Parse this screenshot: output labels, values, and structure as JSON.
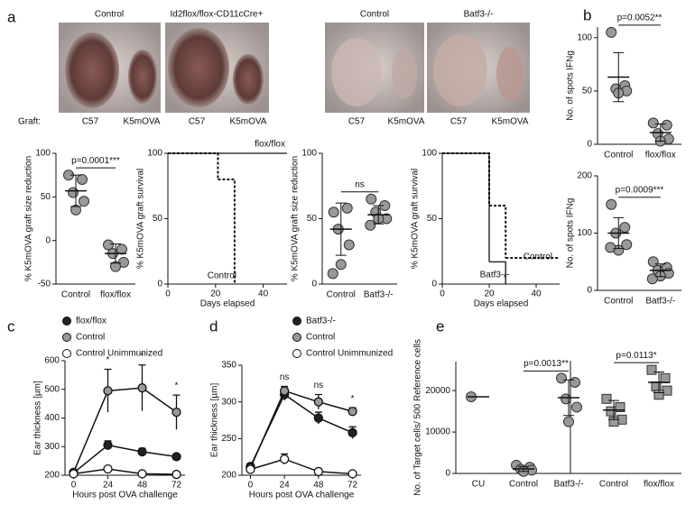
{
  "panel_labels": [
    "a",
    "b",
    "c",
    "d",
    "e"
  ],
  "photos": {
    "titles": [
      "Control",
      "Id2flox/flox-CD11cCre+",
      "Control",
      "Batf3-/-"
    ],
    "graft_label": "Graft:",
    "graft_types": [
      "C57",
      "K5mOVA"
    ]
  },
  "chart_data": [
    {
      "type": "dot",
      "ylabel": "% K5mOVA graft size reduction",
      "categories": [
        "Control",
        "flox/flox"
      ],
      "groups": [
        {
          "values": [
            75,
            70,
            55,
            45,
            35
          ],
          "mean": 57,
          "error": 18,
          "marker": "circle"
        },
        {
          "values": [
            -5,
            -10,
            -15,
            -25,
            -30
          ],
          "mean": -15,
          "error": 11,
          "marker": "circle"
        }
      ],
      "ylim": [
        -50,
        100
      ],
      "yticks": [
        -50,
        0,
        50,
        100
      ],
      "annotations": [
        "p=0.0001***"
      ],
      "color": "#999999"
    },
    {
      "type": "survival",
      "ylabel": "% K5mOVA graft survival",
      "xlabel": "Days elapsed",
      "series": [
        {
          "name": "flox/flox",
          "color": "#111111",
          "dash": false,
          "x": [
            0,
            50
          ],
          "values": [
            100,
            100
          ]
        },
        {
          "name": "Control",
          "color": "#111111",
          "dash": true,
          "x": [
            0,
            21,
            28
          ],
          "values": [
            100,
            80,
            0
          ]
        }
      ],
      "xlim": [
        0,
        50
      ],
      "xticks": [
        0,
        20,
        40
      ],
      "ylim": [
        0,
        100
      ],
      "yticks": [
        0,
        50,
        100
      ]
    },
    {
      "type": "dot",
      "ylabel": "% K5mOVA graft size reduction",
      "categories": [
        "Control",
        "Batf3-/-"
      ],
      "groups": [
        {
          "values": [
            55,
            58,
            42,
            30,
            15,
            8
          ],
          "mean": 42,
          "error": 20,
          "marker": "circle"
        },
        {
          "values": [
            65,
            60,
            55,
            50,
            50,
            45
          ],
          "mean": 53,
          "error": 7,
          "marker": "circle"
        }
      ],
      "ylim": [
        0,
        100
      ],
      "yticks": [
        0,
        50,
        100
      ],
      "annotations": [
        "ns"
      ],
      "color": "#999999"
    },
    {
      "type": "survival",
      "ylabel": "% K5mOVA graft survival",
      "xlabel": "Days elapsed",
      "series": [
        {
          "name": "Control",
          "color": "#111111",
          "dash": true,
          "x": [
            0,
            20,
            27,
            50
          ],
          "values": [
            100,
            60,
            20,
            20
          ]
        },
        {
          "name": "Batf3-/-",
          "color": "#111111",
          "dash": false,
          "x": [
            0,
            20,
            27
          ],
          "values": [
            100,
            17,
            0
          ]
        }
      ],
      "xlim": [
        0,
        50
      ],
      "xticks": [
        0,
        20,
        40
      ],
      "ylim": [
        0,
        100
      ],
      "yticks": [
        0,
        50,
        100
      ]
    },
    {
      "type": "dot",
      "ylabel": "No. of spots IFNg",
      "categories": [
        "Control",
        "flox/flox"
      ],
      "groups": [
        {
          "values": [
            105,
            55,
            52,
            50,
            48
          ],
          "mean": 63,
          "error": 23,
          "marker": "circle"
        },
        {
          "values": [
            20,
            18,
            10,
            5,
            3
          ],
          "mean": 11,
          "error": 8,
          "marker": "circle"
        }
      ],
      "ylim": [
        0,
        110
      ],
      "yticks": [
        0,
        50,
        100
      ],
      "annotations": [
        "p=0.0052**"
      ],
      "color": "#999999"
    },
    {
      "type": "dot",
      "ylabel": "No. of spots IFNg",
      "categories": [
        "Control",
        "Batf3-/-"
      ],
      "groups": [
        {
          "values": [
            150,
            110,
            100,
            80,
            70,
            75
          ],
          "mean": 100,
          "error": 27,
          "marker": "circle"
        },
        {
          "values": [
            50,
            40,
            35,
            30,
            25,
            20
          ],
          "mean": 35,
          "error": 11,
          "marker": "circle"
        }
      ],
      "ylim": [
        0,
        200
      ],
      "yticks": [
        0,
        100,
        200
      ],
      "annotations": [
        "p=0.0009***"
      ],
      "color": "#999999"
    },
    {
      "type": "line",
      "ylabel": "Ear thickness [µm]",
      "xlabel": "Hours post OVA challenge",
      "x": [
        0,
        24,
        48,
        72
      ],
      "xlim": [
        -6,
        78
      ],
      "xticks": [
        0,
        24,
        48,
        72
      ],
      "ylim": [
        200,
        600
      ],
      "yticks": [
        200,
        300,
        400,
        500,
        600
      ],
      "series": [
        {
          "name": "flox/flox",
          "color": "#222222",
          "values": [
            208,
            305,
            282,
            265
          ],
          "errors": [
            5,
            15,
            12,
            6
          ]
        },
        {
          "name": "Control",
          "color": "#999999",
          "values": [
            210,
            495,
            505,
            420
          ],
          "errors": [
            5,
            75,
            80,
            60
          ]
        },
        {
          "name": "Control Unimmunized",
          "color": "#ffffff",
          "values": [
            205,
            222,
            205,
            203
          ],
          "errors": [
            3,
            5,
            3,
            2
          ]
        }
      ],
      "annotations": [
        "*",
        "*",
        "*"
      ]
    },
    {
      "type": "line",
      "ylabel": "Ear thickness [µm]",
      "xlabel": "Hours post OVA challenge",
      "x": [
        0,
        24,
        48,
        72
      ],
      "xlim": [
        -6,
        78
      ],
      "xticks": [
        0,
        24,
        48,
        72
      ],
      "ylim": [
        200,
        350
      ],
      "yticks": [
        200,
        250,
        300,
        350
      ],
      "series": [
        {
          "name": "Batf3-/-",
          "color": "#222222",
          "values": [
            212,
            310,
            278,
            258
          ],
          "errors": [
            4,
            8,
            8,
            8
          ]
        },
        {
          "name": "Control",
          "color": "#999999",
          "values": [
            210,
            315,
            300,
            287
          ],
          "errors": [
            4,
            6,
            10,
            5
          ]
        },
        {
          "name": "Control Unimmunized",
          "color": "#ffffff",
          "values": [
            208,
            222,
            205,
            202
          ],
          "errors": [
            3,
            7,
            3,
            3
          ]
        }
      ],
      "annotations": [
        "ns",
        "ns",
        "*"
      ]
    },
    {
      "type": "dot",
      "ylabel": "No. of Target cells/ 500 Reference cells",
      "categories": [
        "CU",
        "Control",
        "Batf3-/-",
        "Control",
        "flox/flox"
      ],
      "groups": [
        {
          "values": [
            18500
          ],
          "mean": 18500,
          "error": 0,
          "marker": "circle"
        },
        {
          "values": [
            2000,
            1500,
            1000,
            800,
            500
          ],
          "mean": 1100,
          "error": 600,
          "marker": "circle"
        },
        {
          "values": [
            23000,
            22000,
            18000,
            16000,
            12500
          ],
          "mean": 18300,
          "error": 4300,
          "marker": "circle"
        },
        {
          "values": [
            18000,
            16000,
            15000,
            13000,
            12500
          ],
          "mean": 15300,
          "error": 2300,
          "marker": "square"
        },
        {
          "values": [
            25000,
            23000,
            21000,
            20000,
            19000
          ],
          "mean": 22000,
          "error": 2500,
          "marker": "square"
        }
      ],
      "ylim": [
        0,
        27000
      ],
      "yticks": [
        0,
        10000,
        20000
      ],
      "annotations": [
        "p=0.0013**",
        "p=0.0113*"
      ],
      "color": "#999999"
    }
  ]
}
